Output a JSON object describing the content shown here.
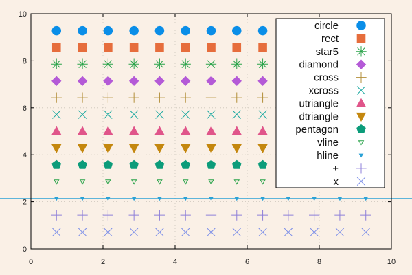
{
  "chart_data": {
    "type": "scatter",
    "title": "",
    "xlabel": "",
    "ylabel": "",
    "xlim": [
      0,
      10
    ],
    "ylim": [
      0,
      10
    ],
    "xticks": [
      "0",
      "2",
      "4",
      "6",
      "8",
      "10"
    ],
    "yticks": [
      "0",
      "2",
      "4",
      "6",
      "8",
      "10"
    ],
    "grid": true,
    "legend_position": "top-right",
    "background": "#faf0e6",
    "hline": {
      "name": "hline",
      "y": 2.14,
      "color": "#2aa1d6"
    },
    "series": [
      {
        "name": "circle",
        "marker": "circle",
        "color": "#0a8ee8",
        "y": 9.28,
        "x": [
          0.71,
          1.43,
          2.14,
          2.86,
          3.57,
          4.29,
          5.0,
          5.71,
          6.43
        ]
      },
      {
        "name": "rect",
        "marker": "rect",
        "color": "#e66d3c",
        "y": 8.57,
        "x": [
          0.71,
          1.43,
          2.14,
          2.86,
          3.57,
          4.29,
          5.0,
          5.71,
          6.43
        ]
      },
      {
        "name": "star5",
        "marker": "star",
        "color": "#2aa34a",
        "y": 7.86,
        "x": [
          0.71,
          1.43,
          2.14,
          2.86,
          3.57,
          4.29,
          5.0,
          5.71,
          6.43
        ]
      },
      {
        "name": "diamond",
        "marker": "diamond",
        "color": "#b45ad7",
        "y": 7.14,
        "x": [
          0.71,
          1.43,
          2.14,
          2.86,
          3.57,
          4.29,
          5.0,
          5.71,
          6.43
        ]
      },
      {
        "name": "cross",
        "marker": "plus",
        "color": "#b38f3a",
        "y": 6.43,
        "x": [
          0.71,
          1.43,
          2.14,
          2.86,
          3.57,
          4.29,
          5.0,
          5.71,
          6.43
        ]
      },
      {
        "name": "xcross",
        "marker": "x",
        "color": "#1aa8a0",
        "y": 5.71,
        "x": [
          0.71,
          1.43,
          2.14,
          2.86,
          3.57,
          4.29,
          5.0,
          5.71,
          6.43
        ]
      },
      {
        "name": "utriangle",
        "marker": "utriangle",
        "color": "#e0558a",
        "y": 5.0,
        "x": [
          0.71,
          1.43,
          2.14,
          2.86,
          3.57,
          4.29,
          5.0,
          5.71,
          6.43
        ]
      },
      {
        "name": "dtriangle",
        "marker": "dtriangle",
        "color": "#c4870e",
        "y": 4.29,
        "x": [
          0.71,
          1.43,
          2.14,
          2.86,
          3.57,
          4.29,
          5.0,
          5.71,
          6.43
        ]
      },
      {
        "name": "pentagon",
        "marker": "pentagon",
        "color": "#0c9c7a",
        "y": 3.57,
        "x": [
          0.71,
          1.43,
          2.14,
          2.86,
          3.57,
          4.29,
          5.0,
          5.71,
          6.43
        ]
      },
      {
        "name": "vline",
        "marker": "vtri",
        "color": "#2aa34a",
        "y": 2.86,
        "x": [
          0.71,
          1.43,
          2.14,
          2.86,
          3.57,
          4.29,
          5.0,
          5.71,
          6.43
        ]
      },
      {
        "name": "hline",
        "marker": "htri",
        "color": "#2aa1d6",
        "y": 2.14,
        "x": [
          0.71,
          1.43,
          2.14,
          2.86,
          3.57,
          4.29,
          5.0,
          5.71,
          6.43,
          7.14,
          7.86,
          8.57,
          9.29
        ]
      },
      {
        "name": "+",
        "marker": "plus",
        "color": "#8e7fd9",
        "y": 1.43,
        "x": [
          0.71,
          1.43,
          2.14,
          2.86,
          3.57,
          4.29,
          5.0,
          5.71,
          6.43,
          7.14,
          7.86,
          8.57,
          9.29
        ]
      },
      {
        "name": "x",
        "marker": "x",
        "color": "#7b8ee8",
        "y": 0.71,
        "x": [
          0.71,
          1.43,
          2.14,
          2.86,
          3.57,
          4.29,
          5.0,
          5.71,
          6.43,
          7.14,
          7.86,
          8.57,
          9.29
        ]
      }
    ]
  }
}
